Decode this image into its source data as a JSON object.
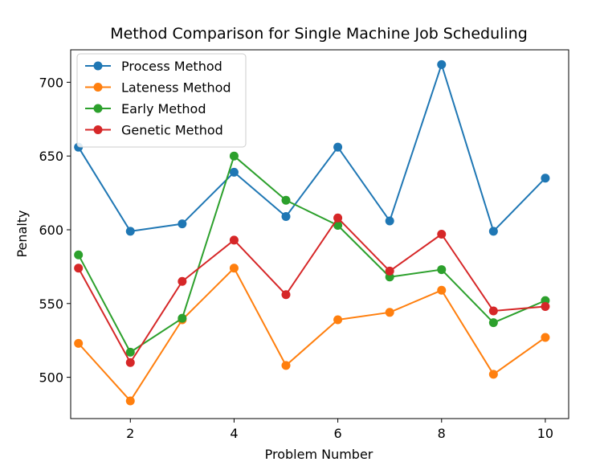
{
  "chart_data": {
    "type": "line",
    "title": "Method Comparison for Single Machine Job Scheduling",
    "xlabel": "Problem Number",
    "ylabel": "Penalty",
    "xlim": [
      0.85,
      10.45
    ],
    "ylim": [
      472,
      722
    ],
    "xticks": [
      2,
      4,
      6,
      8,
      10
    ],
    "yticks": [
      500,
      550,
      600,
      650,
      700
    ],
    "grid": false,
    "legend_position": "upper-left",
    "x": [
      1,
      2,
      3,
      4,
      5,
      6,
      7,
      8,
      9,
      10
    ],
    "series": [
      {
        "name": "Process Method",
        "color": "#1f77b4",
        "values": [
          656,
          599,
          604,
          639,
          609,
          656,
          606,
          712,
          599,
          635
        ]
      },
      {
        "name": "Lateness Method",
        "color": "#ff7f0e",
        "values": [
          523,
          484,
          539,
          574,
          508,
          539,
          544,
          559,
          502,
          527
        ]
      },
      {
        "name": "Early Method",
        "color": "#2ca02c",
        "values": [
          583,
          517,
          540,
          650,
          620,
          603,
          568,
          573,
          537,
          552
        ]
      },
      {
        "name": "Genetic Method",
        "color": "#d62728",
        "values": [
          574,
          510,
          565,
          593,
          556,
          608,
          572,
          597,
          545,
          548
        ]
      }
    ]
  }
}
